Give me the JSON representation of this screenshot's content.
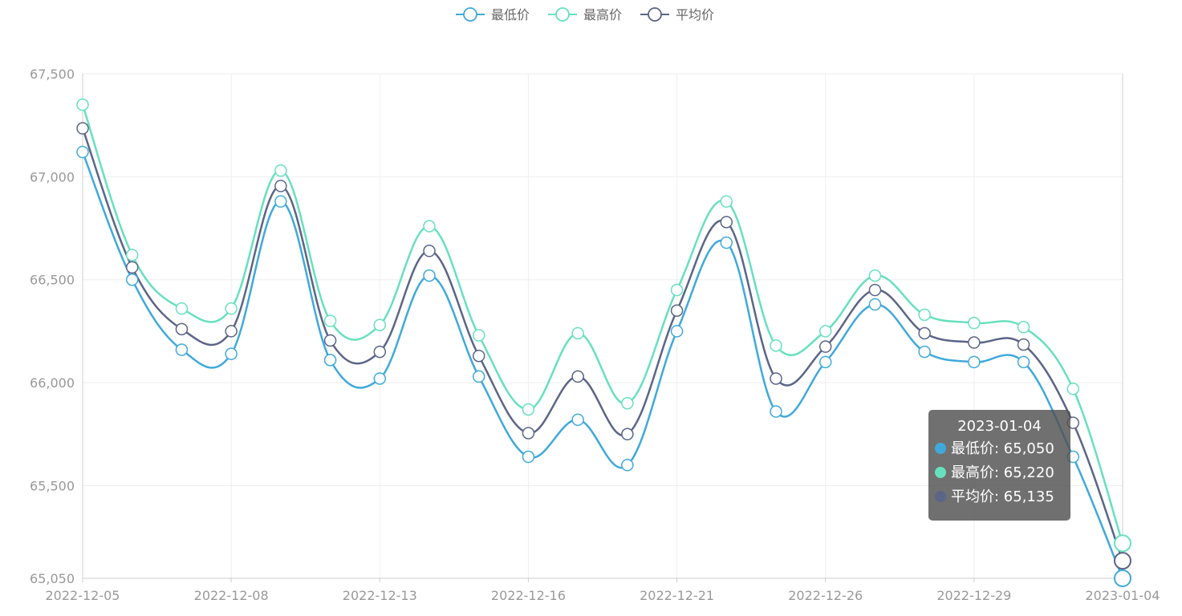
{
  "chart_data": {
    "type": "line",
    "smooth": true,
    "legend_position": "top-center",
    "grid": true,
    "title": "",
    "xlabel": "",
    "ylabel": "",
    "ylim": [
      65050,
      67500
    ],
    "yticks": [
      65050,
      65500,
      66000,
      66500,
      67000,
      67500
    ],
    "ytick_labels": [
      "65,050",
      "65,500",
      "66,000",
      "66,500",
      "67,000",
      "67,500"
    ],
    "x": [
      "2022-12-05",
      "2022-12-06",
      "2022-12-07",
      "2022-12-08",
      "2022-12-09",
      "2022-12-12",
      "2022-12-13",
      "2022-12-14",
      "2022-12-15",
      "2022-12-16",
      "2022-12-19",
      "2022-12-20",
      "2022-12-21",
      "2022-12-22",
      "2022-12-23",
      "2022-12-26",
      "2022-12-27",
      "2022-12-28",
      "2022-12-29",
      "2022-12-30",
      "2023-01-03",
      "2023-01-04"
    ],
    "xtick_labels": [
      "2022-12-05",
      "2022-12-08",
      "2022-12-13",
      "2022-12-16",
      "2022-12-21",
      "2022-12-26",
      "2022-12-29",
      "2023-01-04"
    ],
    "series": [
      {
        "name": "最低价",
        "color": "#3fa9db",
        "values": [
          67120,
          66500,
          66160,
          66140,
          66880,
          66110,
          66020,
          66520,
          66030,
          65640,
          65820,
          65600,
          66250,
          66680,
          65860,
          66100,
          66380,
          66150,
          66100,
          66100,
          65640,
          65050
        ]
      },
      {
        "name": "最高价",
        "color": "#67e0be",
        "values": [
          67350,
          66620,
          66360,
          66360,
          67030,
          66300,
          66280,
          66760,
          66230,
          65870,
          66240,
          65900,
          66450,
          66880,
          66180,
          66250,
          66520,
          66330,
          66290,
          66270,
          65970,
          65220
        ]
      },
      {
        "name": "平均价",
        "color": "#5b6587",
        "values": [
          67235,
          66560,
          66260,
          66250,
          66955,
          66205,
          66150,
          66640,
          66130,
          65755,
          66030,
          65750,
          66350,
          66780,
          66020,
          66175,
          66450,
          66240,
          66195,
          66185,
          65805,
          65135
        ]
      }
    ]
  },
  "tooltip": {
    "title": "2023-01-04",
    "rows": [
      {
        "label": "最低价: 65,050",
        "color": "#3fa9db"
      },
      {
        "label": "最高价: 65,220",
        "color": "#67e0be"
      },
      {
        "label": "平均价: 65,135",
        "color": "#5b6587"
      }
    ]
  }
}
